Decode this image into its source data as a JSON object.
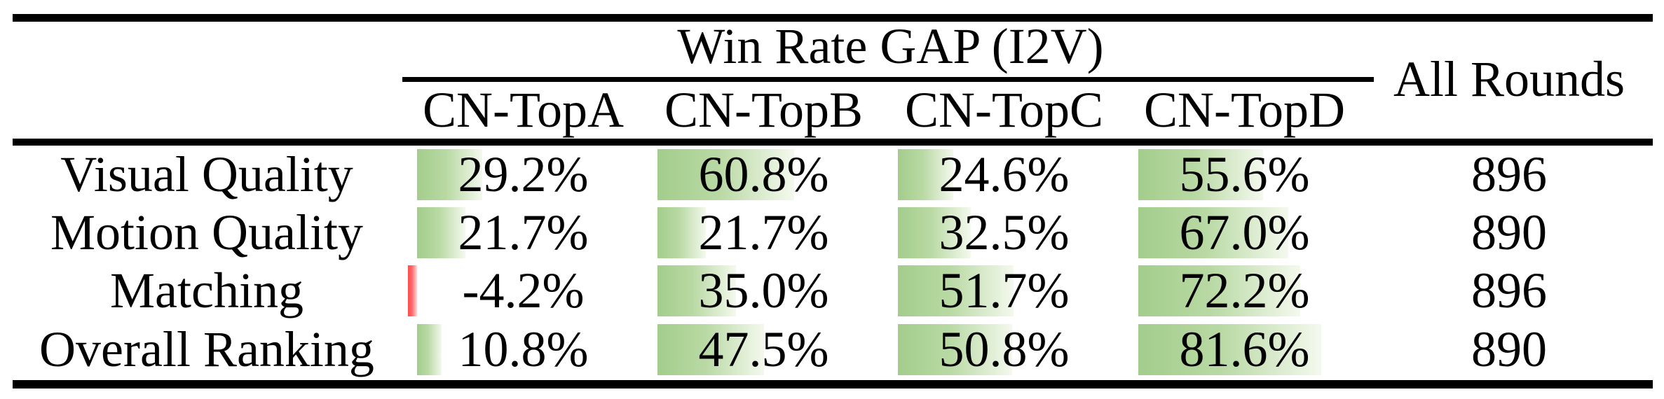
{
  "table": {
    "header": {
      "group_title": "Win Rate GAP (I2V)",
      "columns": [
        "CN-TopA",
        "CN-TopB",
        "CN-TopC",
        "CN-TopD"
      ],
      "all_rounds": "All Rounds"
    },
    "rows": [
      {
        "label": "Visual Quality",
        "values": [
          29.2,
          60.8,
          24.6,
          55.6
        ],
        "display": [
          "29.2%",
          "60.8%",
          "24.6%",
          "55.6%"
        ],
        "all_rounds": "896"
      },
      {
        "label": "Motion Quality",
        "values": [
          21.7,
          21.7,
          32.5,
          67.0
        ],
        "display": [
          "21.7%",
          "21.7%",
          "32.5%",
          "67.0%"
        ],
        "all_rounds": "890"
      },
      {
        "label": "Matching",
        "values": [
          -4.2,
          35.0,
          51.7,
          72.2
        ],
        "display": [
          "-4.2%",
          "35.0%",
          "51.7%",
          "72.2%"
        ],
        "all_rounds": "896"
      },
      {
        "label": "Overall Ranking",
        "values": [
          10.8,
          47.5,
          50.8,
          81.6
        ],
        "display": [
          "10.8%",
          "47.5%",
          "50.8%",
          "81.6%"
        ],
        "all_rounds": "890"
      }
    ],
    "colors": {
      "bar_positive": "#a3cd8c",
      "bar_positive_fade": "#f4f9ee",
      "bar_negative": "#ff4d4d",
      "rule": "#000000",
      "text": "#000000",
      "background": "#ffffff"
    }
  },
  "chart_data": {
    "type": "table",
    "title": "Win Rate GAP (I2V)",
    "columns": [
      "CN-TopA",
      "CN-TopB",
      "CN-TopC",
      "CN-TopD",
      "All Rounds"
    ],
    "row_labels": [
      "Visual Quality",
      "Motion Quality",
      "Matching",
      "Overall Ranking"
    ],
    "values": [
      [
        29.2,
        60.8,
        24.6,
        55.6,
        896
      ],
      [
        21.7,
        21.7,
        32.5,
        67.0,
        890
      ],
      [
        -4.2,
        35.0,
        51.7,
        72.2,
        896
      ],
      [
        10.8,
        47.5,
        50.8,
        81.6,
        890
      ]
    ],
    "units": {
      "cn_top_columns": "percent (win rate gap)",
      "all_rounds": "count of rounds"
    },
    "annotations": "In-cell horizontal bars proportional to value: green gradient for positive, red for negative; bar baseline at left edge of each CN-Top column."
  }
}
